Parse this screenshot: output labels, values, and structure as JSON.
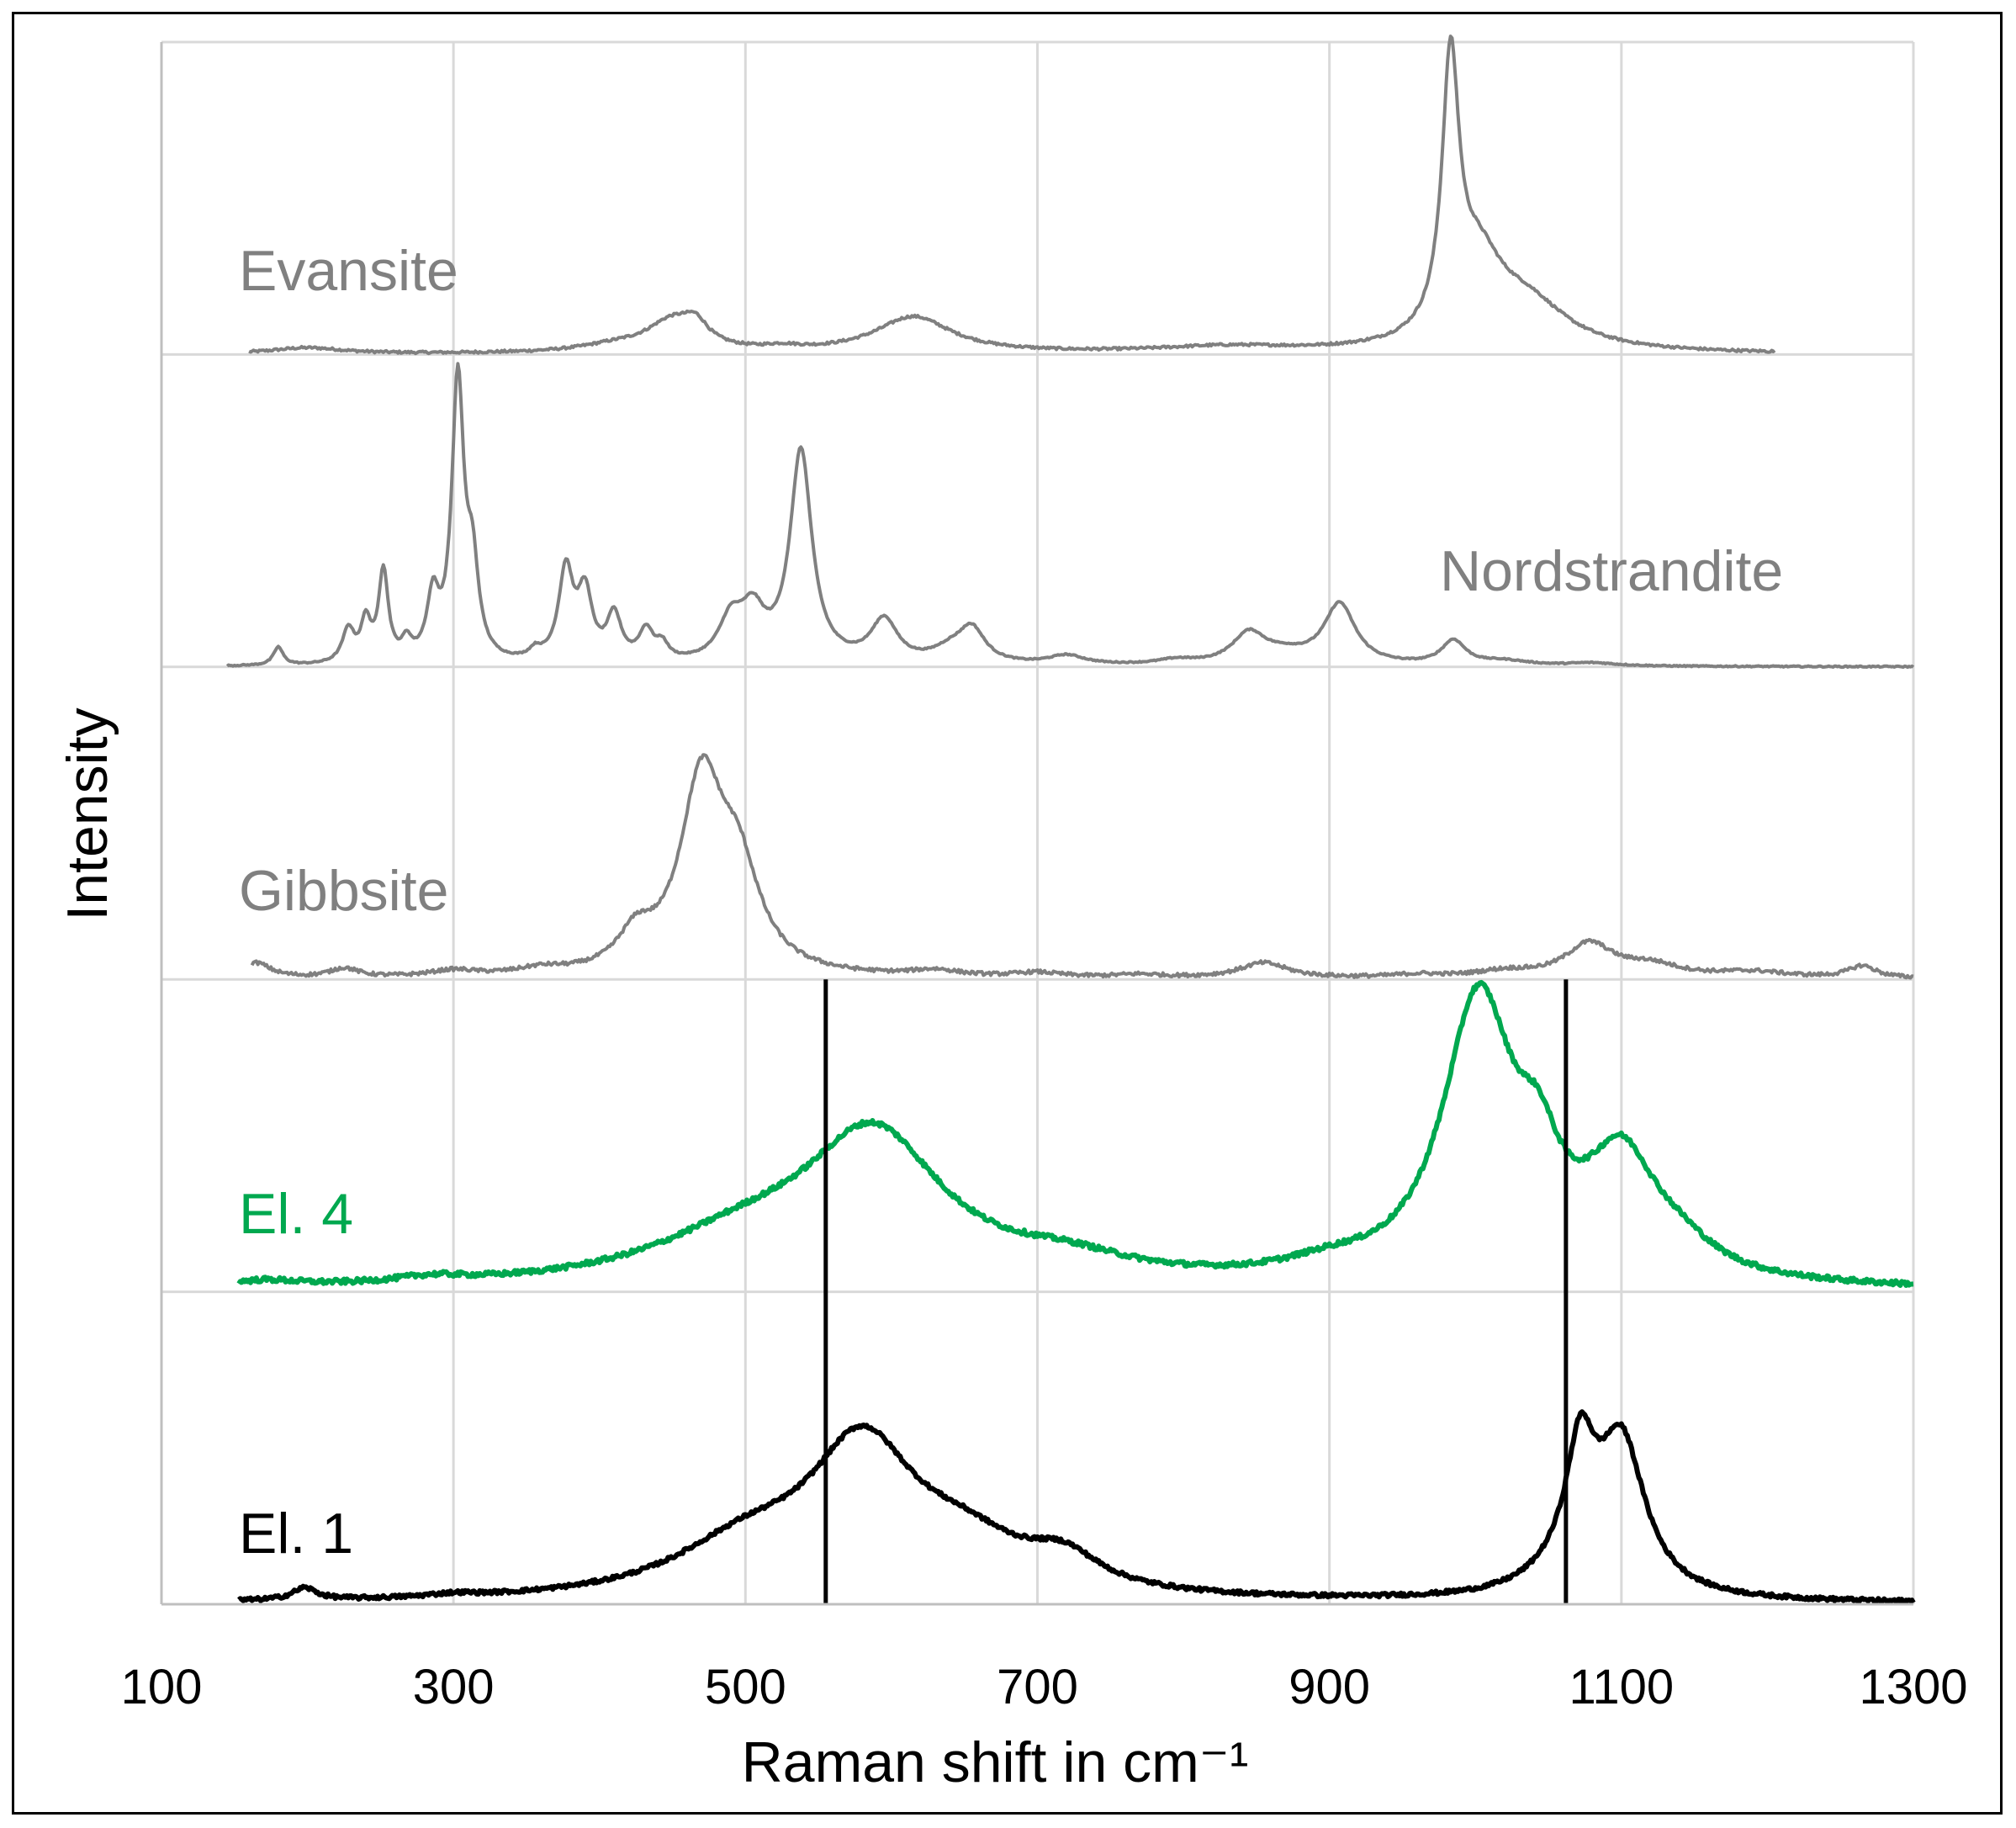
{
  "chart_data": {
    "type": "line",
    "title": "",
    "xlabel": "Raman shift in cm⁻¹",
    "ylabel": "Intensity",
    "xlim": [
      100,
      1300
    ],
    "xticks": [
      100,
      300,
      500,
      700,
      900,
      1100,
      1300
    ],
    "tick_labels": [
      "100",
      "300",
      "500",
      "700",
      "900",
      "1100",
      "1300"
    ],
    "grid": true,
    "layout": "stacked offset spectra, 5 panels (top to bottom)",
    "markers": [
      {
        "name": "reference line",
        "x": 555
      },
      {
        "name": "reference line",
        "x": 1062
      }
    ],
    "series": [
      {
        "name": "Evansite",
        "panel": 0,
        "color": "#808080",
        "line_width": 4,
        "x_range": [
          160,
          1205
        ],
        "noise": 0.004,
        "peaks": [
          {
            "x": 450,
            "h": 0.1,
            "w": 22
          },
          {
            "x": 466,
            "h": 0.06,
            "w": 10
          },
          {
            "x": 410,
            "h": 0.02,
            "w": 30
          },
          {
            "x": 200,
            "h": 0.02,
            "w": 30
          },
          {
            "x": 525,
            "h": 0.012,
            "w": 15
          },
          {
            "x": 615,
            "h": 0.12,
            "w": 32
          },
          {
            "x": 830,
            "h": 0.02,
            "w": 60
          },
          {
            "x": 983,
            "h": 0.87,
            "w": 7
          },
          {
            "x": 1002,
            "h": 0.25,
            "w": 20
          },
          {
            "x": 1035,
            "h": 0.15,
            "w": 35
          }
        ]
      },
      {
        "name": "Nordstrandite",
        "panel": 1,
        "color": "#808080",
        "line_width": 4,
        "x_range": [
          145,
          1300
        ],
        "noise": 0.002,
        "peaks": [
          {
            "x": 180,
            "h": 0.06,
            "w": 4
          },
          {
            "x": 228,
            "h": 0.11,
            "w": 5
          },
          {
            "x": 240,
            "h": 0.13,
            "w": 4
          },
          {
            "x": 252,
            "h": 0.3,
            "w": 4
          },
          {
            "x": 268,
            "h": 0.06,
            "w": 4
          },
          {
            "x": 286,
            "h": 0.2,
            "w": 5
          },
          {
            "x": 303,
            "h": 0.92,
            "w": 5
          },
          {
            "x": 313,
            "h": 0.28,
            "w": 5
          },
          {
            "x": 356,
            "h": 0.03,
            "w": 5
          },
          {
            "x": 377,
            "h": 0.3,
            "w": 6
          },
          {
            "x": 390,
            "h": 0.22,
            "w": 6
          },
          {
            "x": 410,
            "h": 0.15,
            "w": 6
          },
          {
            "x": 432,
            "h": 0.1,
            "w": 6
          },
          {
            "x": 443,
            "h": 0.05,
            "w": 5
          },
          {
            "x": 490,
            "h": 0.13,
            "w": 10
          },
          {
            "x": 505,
            "h": 0.15,
            "w": 10
          },
          {
            "x": 538,
            "h": 0.7,
            "w": 9
          },
          {
            "x": 595,
            "h": 0.14,
            "w": 11
          },
          {
            "x": 640,
            "h": 0.04,
            "w": 15
          },
          {
            "x": 655,
            "h": 0.11,
            "w": 11
          },
          {
            "x": 720,
            "h": 0.03,
            "w": 15
          },
          {
            "x": 795,
            "h": 0.015,
            "w": 15
          },
          {
            "x": 845,
            "h": 0.1,
            "w": 14
          },
          {
            "x": 870,
            "h": 0.03,
            "w": 20
          },
          {
            "x": 907,
            "h": 0.2,
            "w": 13
          },
          {
            "x": 985,
            "h": 0.08,
            "w": 10
          },
          {
            "x": 1020,
            "h": 0.015,
            "w": 20
          },
          {
            "x": 1080,
            "h": 0.01,
            "w": 20
          }
        ]
      },
      {
        "name": "Gibbsite",
        "panel": 2,
        "color": "#808080",
        "line_width": 4,
        "x_range": [
          162,
          1300
        ],
        "noise": 0.006,
        "peaks": [
          {
            "x": 165,
            "h": 0.05,
            "w": 12
          },
          {
            "x": 225,
            "h": 0.03,
            "w": 12
          },
          {
            "x": 300,
            "h": 0.02,
            "w": 20
          },
          {
            "x": 360,
            "h": 0.02,
            "w": 20
          },
          {
            "x": 425,
            "h": 0.11,
            "w": 15
          },
          {
            "x": 470,
            "h": 0.62,
            "w": 18
          },
          {
            "x": 495,
            "h": 0.3,
            "w": 18
          },
          {
            "x": 630,
            "h": 0.02,
            "w": 20
          },
          {
            "x": 700,
            "h": 0.015,
            "w": 20
          },
          {
            "x": 770,
            "h": 0.01,
            "w": 20
          },
          {
            "x": 855,
            "h": 0.05,
            "w": 20
          },
          {
            "x": 960,
            "h": 0.01,
            "w": 20
          },
          {
            "x": 1020,
            "h": 0.02,
            "w": 25
          },
          {
            "x": 1078,
            "h": 0.11,
            "w": 20
          },
          {
            "x": 1120,
            "h": 0.04,
            "w": 25
          },
          {
            "x": 1190,
            "h": 0.02,
            "w": 30
          },
          {
            "x": 1265,
            "h": 0.04,
            "w": 12
          }
        ]
      },
      {
        "name": "El. 4",
        "panel": 3,
        "color": "#00a84f",
        "line_width": 6,
        "x_range": [
          153,
          1300
        ],
        "noise": 0.008,
        "peaks": [
          {
            "x": 170,
            "h": 0.02,
            "w": 30
          },
          {
            "x": 285,
            "h": 0.02,
            "w": 30
          },
          {
            "x": 500,
            "h": 0.14,
            "w": 80
          },
          {
            "x": 588,
            "h": 0.48,
            "w": 58
          },
          {
            "x": 720,
            "h": 0.06,
            "w": 55
          },
          {
            "x": 900,
            "h": 0.04,
            "w": 40
          },
          {
            "x": 1002,
            "h": 0.92,
            "w": 30
          },
          {
            "x": 1043,
            "h": 0.25,
            "w": 18
          },
          {
            "x": 1100,
            "h": 0.38,
            "w": 30
          },
          {
            "x": 1140,
            "h": 0.07,
            "w": 30
          }
        ]
      },
      {
        "name": "El. 1",
        "panel": 4,
        "color": "#000000",
        "line_width": 6,
        "x_range": [
          153,
          1300
        ],
        "noise": 0.006,
        "peaks": [
          {
            "x": 198,
            "h": 0.04,
            "w": 10
          },
          {
            "x": 300,
            "h": 0.01,
            "w": 20
          },
          {
            "x": 500,
            "h": 0.16,
            "w": 60
          },
          {
            "x": 580,
            "h": 0.48,
            "w": 45
          },
          {
            "x": 650,
            "h": 0.14,
            "w": 50
          },
          {
            "x": 718,
            "h": 0.1,
            "w": 30
          },
          {
            "x": 1072,
            "h": 0.4,
            "w": 12
          },
          {
            "x": 1100,
            "h": 0.5,
            "w": 20
          },
          {
            "x": 1060,
            "h": 0.06,
            "w": 30
          }
        ]
      }
    ]
  }
}
